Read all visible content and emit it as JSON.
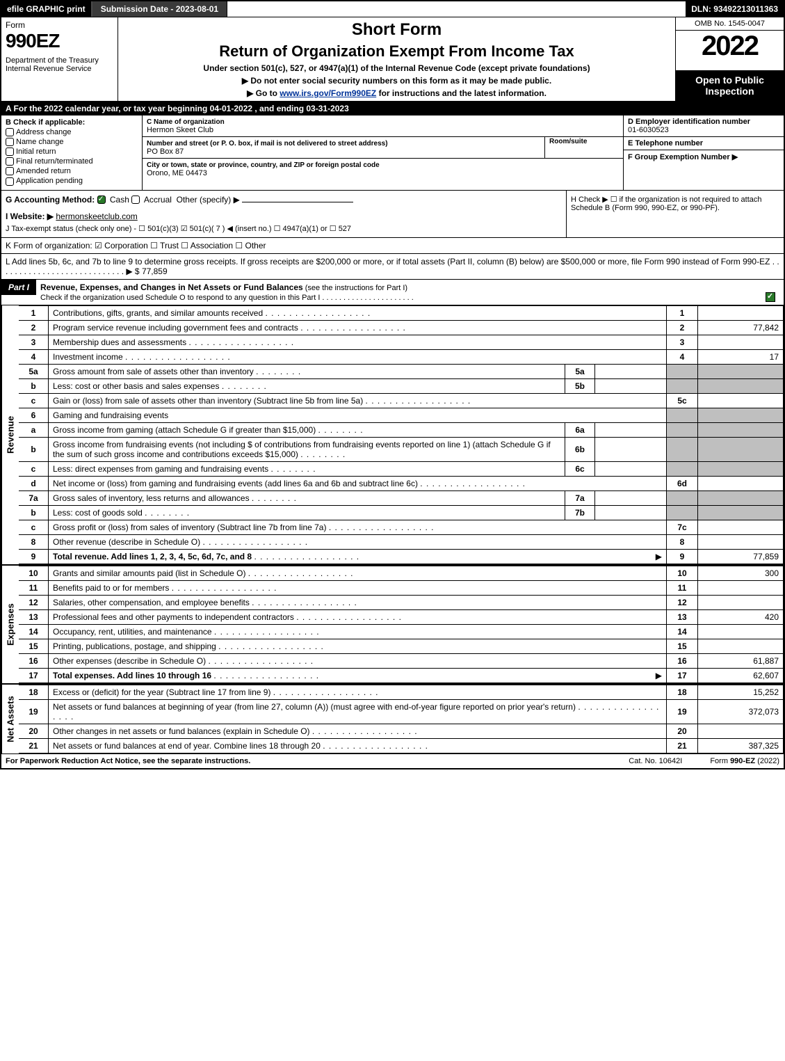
{
  "topbar": {
    "efile": "efile GRAPHIC print",
    "submission": "Submission Date - 2023-08-01",
    "dln": "DLN: 93492213011363"
  },
  "header": {
    "form_label": "Form",
    "form_number": "990EZ",
    "dept": "Department of the Treasury\nInternal Revenue Service",
    "short_form": "Short Form",
    "return_title": "Return of Organization Exempt From Income Tax",
    "subtitle": "Under section 501(c), 527, or 4947(a)(1) of the Internal Revenue Code (except private foundations)",
    "instr1": "▶ Do not enter social security numbers on this form as it may be made public.",
    "instr2_pre": "▶ Go to ",
    "instr2_link": "www.irs.gov/Form990EZ",
    "instr2_post": " for instructions and the latest information.",
    "omb": "OMB No. 1545-0047",
    "year": "2022",
    "open": "Open to Public Inspection"
  },
  "section_a": "A  For the 2022 calendar year, or tax year beginning 04-01-2022 , and ending 03-31-2023",
  "col_b": {
    "title": "B  Check if applicable:",
    "items": [
      "Address change",
      "Name change",
      "Initial return",
      "Final return/terminated",
      "Amended return",
      "Application pending"
    ]
  },
  "col_c": {
    "name_label": "C Name of organization",
    "name": "Hermon Skeet Club",
    "street_label": "Number and street (or P. O. box, if mail is not delivered to street address)",
    "room_label": "Room/suite",
    "street": "PO Box 87",
    "city_label": "City or town, state or province, country, and ZIP or foreign postal code",
    "city": "Orono, ME  04473"
  },
  "col_d": {
    "d_label": "D Employer identification number",
    "ein": "01-6030523",
    "e_label": "E Telephone number",
    "f_label": "F Group Exemption Number   ▶"
  },
  "row_g": {
    "label": "G Accounting Method:",
    "cash": "Cash",
    "accrual": "Accrual",
    "other": "Other (specify) ▶"
  },
  "row_h": "H  Check ▶  ☐  if the organization is not required to attach Schedule B (Form 990, 990-EZ, or 990-PF).",
  "row_i": {
    "label": "I Website: ▶",
    "value": "hermonskeetclub.com"
  },
  "row_j": "J Tax-exempt status (check only one) - ☐ 501(c)(3)  ☑ 501(c)( 7 ) ◀ (insert no.) ☐ 4947(a)(1) or ☐ 527",
  "row_k": "K Form of organization:  ☑ Corporation  ☐ Trust  ☐ Association  ☐ Other",
  "row_l": {
    "text": "L Add lines 5b, 6c, and 7b to line 9 to determine gross receipts. If gross receipts are $200,000 or more, or if total assets (Part II, column (B) below) are $500,000 or more, file Form 990 instead of Form 990-EZ  .  .  .  .  .  .  .  .  .  .  .  .  .  .  .  .  .  .  .  .  .  .  .  .  .  .  .  . ▶ $",
    "value": "77,859"
  },
  "part1": {
    "label": "Part I",
    "title": "Revenue, Expenses, and Changes in Net Assets or Fund Balances",
    "sub": " (see the instructions for Part I)",
    "check_line": "Check if the organization used Schedule O to respond to any question in this Part I  .  .  .  .  .  .  .  .  .  .  .  .  .  .  .  .  .  .  .  .  .  ."
  },
  "sections": {
    "revenue": "Revenue",
    "expenses": "Expenses",
    "netassets": "Net Assets"
  },
  "lines": [
    {
      "n": "1",
      "desc": "Contributions, gifts, grants, and similar amounts received",
      "box": "1",
      "val": ""
    },
    {
      "n": "2",
      "desc": "Program service revenue including government fees and contracts",
      "box": "2",
      "val": "77,842"
    },
    {
      "n": "3",
      "desc": "Membership dues and assessments",
      "box": "3",
      "val": ""
    },
    {
      "n": "4",
      "desc": "Investment income",
      "box": "4",
      "val": "17"
    },
    {
      "n": "5a",
      "desc": "Gross amount from sale of assets other than inventory",
      "inner": "5a",
      "ival": ""
    },
    {
      "n": "b",
      "desc": "Less: cost or other basis and sales expenses",
      "inner": "5b",
      "ival": ""
    },
    {
      "n": "c",
      "desc": "Gain or (loss) from sale of assets other than inventory (Subtract line 5b from line 5a)",
      "box": "5c",
      "val": ""
    },
    {
      "n": "6",
      "desc": "Gaming and fundraising events",
      "plain": true
    },
    {
      "n": "a",
      "desc": "Gross income from gaming (attach Schedule G if greater than $15,000)",
      "inner": "6a",
      "ival": ""
    },
    {
      "n": "b",
      "desc": "Gross income from fundraising events (not including $                    of contributions from fundraising events reported on line 1) (attach Schedule G if the sum of such gross income and contributions exceeds $15,000)",
      "inner": "6b",
      "ival": ""
    },
    {
      "n": "c",
      "desc": "Less: direct expenses from gaming and fundraising events",
      "inner": "6c",
      "ival": ""
    },
    {
      "n": "d",
      "desc": "Net income or (loss) from gaming and fundraising events (add lines 6a and 6b and subtract line 6c)",
      "box": "6d",
      "val": ""
    },
    {
      "n": "7a",
      "desc": "Gross sales of inventory, less returns and allowances",
      "inner": "7a",
      "ival": ""
    },
    {
      "n": "b",
      "desc": "Less: cost of goods sold",
      "inner": "7b",
      "ival": ""
    },
    {
      "n": "c",
      "desc": "Gross profit or (loss) from sales of inventory (Subtract line 7b from line 7a)",
      "box": "7c",
      "val": ""
    },
    {
      "n": "8",
      "desc": "Other revenue (describe in Schedule O)",
      "box": "8",
      "val": ""
    },
    {
      "n": "9",
      "desc": "Total revenue. Add lines 1, 2, 3, 4, 5c, 6d, 7c, and 8",
      "box": "9",
      "val": "77,859",
      "bold": true,
      "arrow": true
    }
  ],
  "exp_lines": [
    {
      "n": "10",
      "desc": "Grants and similar amounts paid (list in Schedule O)",
      "box": "10",
      "val": "300"
    },
    {
      "n": "11",
      "desc": "Benefits paid to or for members",
      "box": "11",
      "val": ""
    },
    {
      "n": "12",
      "desc": "Salaries, other compensation, and employee benefits",
      "box": "12",
      "val": ""
    },
    {
      "n": "13",
      "desc": "Professional fees and other payments to independent contractors",
      "box": "13",
      "val": "420"
    },
    {
      "n": "14",
      "desc": "Occupancy, rent, utilities, and maintenance",
      "box": "14",
      "val": ""
    },
    {
      "n": "15",
      "desc": "Printing, publications, postage, and shipping",
      "box": "15",
      "val": ""
    },
    {
      "n": "16",
      "desc": "Other expenses (describe in Schedule O)",
      "box": "16",
      "val": "61,887"
    },
    {
      "n": "17",
      "desc": "Total expenses. Add lines 10 through 16",
      "box": "17",
      "val": "62,607",
      "bold": true,
      "arrow": true
    }
  ],
  "net_lines": [
    {
      "n": "18",
      "desc": "Excess or (deficit) for the year (Subtract line 17 from line 9)",
      "box": "18",
      "val": "15,252"
    },
    {
      "n": "19",
      "desc": "Net assets or fund balances at beginning of year (from line 27, column (A)) (must agree with end-of-year figure reported on prior year's return)",
      "box": "19",
      "val": "372,073"
    },
    {
      "n": "20",
      "desc": "Other changes in net assets or fund balances (explain in Schedule O)",
      "box": "20",
      "val": ""
    },
    {
      "n": "21",
      "desc": "Net assets or fund balances at end of year. Combine lines 18 through 20",
      "box": "21",
      "val": "387,325"
    }
  ],
  "footer": {
    "left": "For Paperwork Reduction Act Notice, see the separate instructions.",
    "mid": "Cat. No. 10642I",
    "right_pre": "Form ",
    "right_bold": "990-EZ",
    "right_post": " (2022)"
  }
}
